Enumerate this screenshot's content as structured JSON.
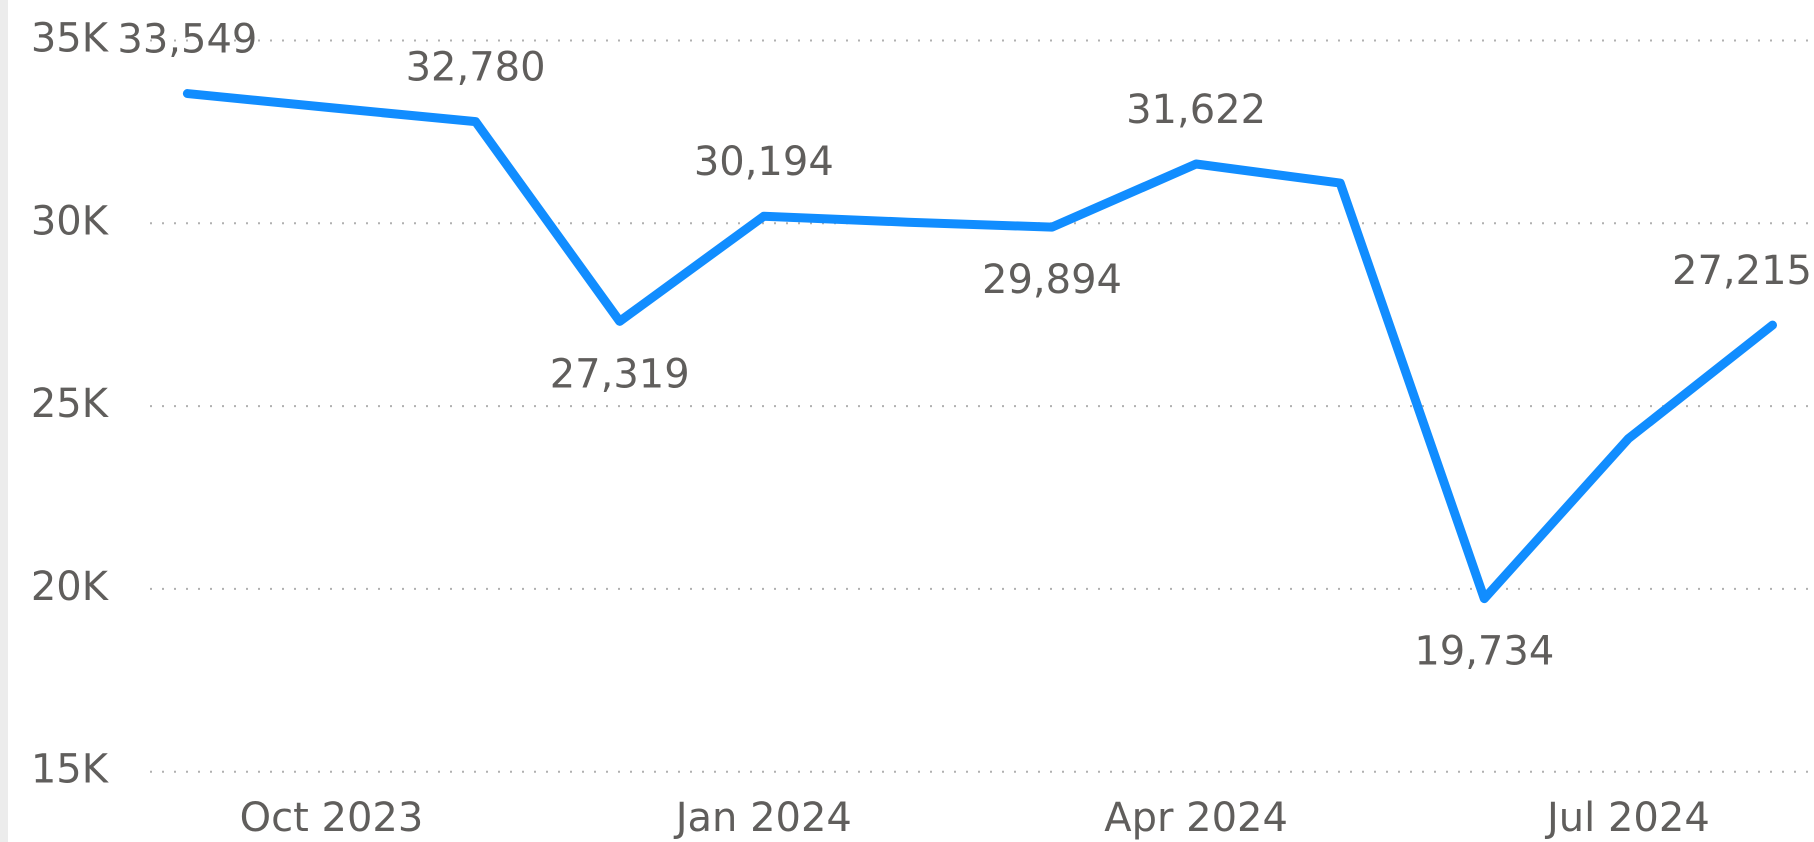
{
  "chart_data": {
    "type": "line",
    "categories": [
      null,
      "Oct 2023",
      null,
      null,
      "Jan 2024",
      null,
      null,
      "Apr 2024",
      null,
      null,
      "Jul 2024",
      null
    ],
    "series": [
      {
        "color": "#118dff",
        "values": [
          33549,
          33160,
          32780,
          27319,
          30194,
          30030,
          29894,
          31622,
          31100,
          19734,
          24110,
          27215
        ],
        "value_labels": [
          "33,549",
          null,
          "32,780",
          "27,319",
          "30,194",
          null,
          "29,894",
          "31,622",
          null,
          "19,734",
          null,
          "27,215"
        ]
      }
    ],
    "ylim": [
      15000,
      35000
    ],
    "yticks": [
      {
        "value": 15000,
        "label": "15K"
      },
      {
        "value": 20000,
        "label": "20K"
      },
      {
        "value": 25000,
        "label": "25K"
      },
      {
        "value": 30000,
        "label": "30K"
      },
      {
        "value": 35000,
        "label": "35K"
      }
    ],
    "grid": true
  }
}
